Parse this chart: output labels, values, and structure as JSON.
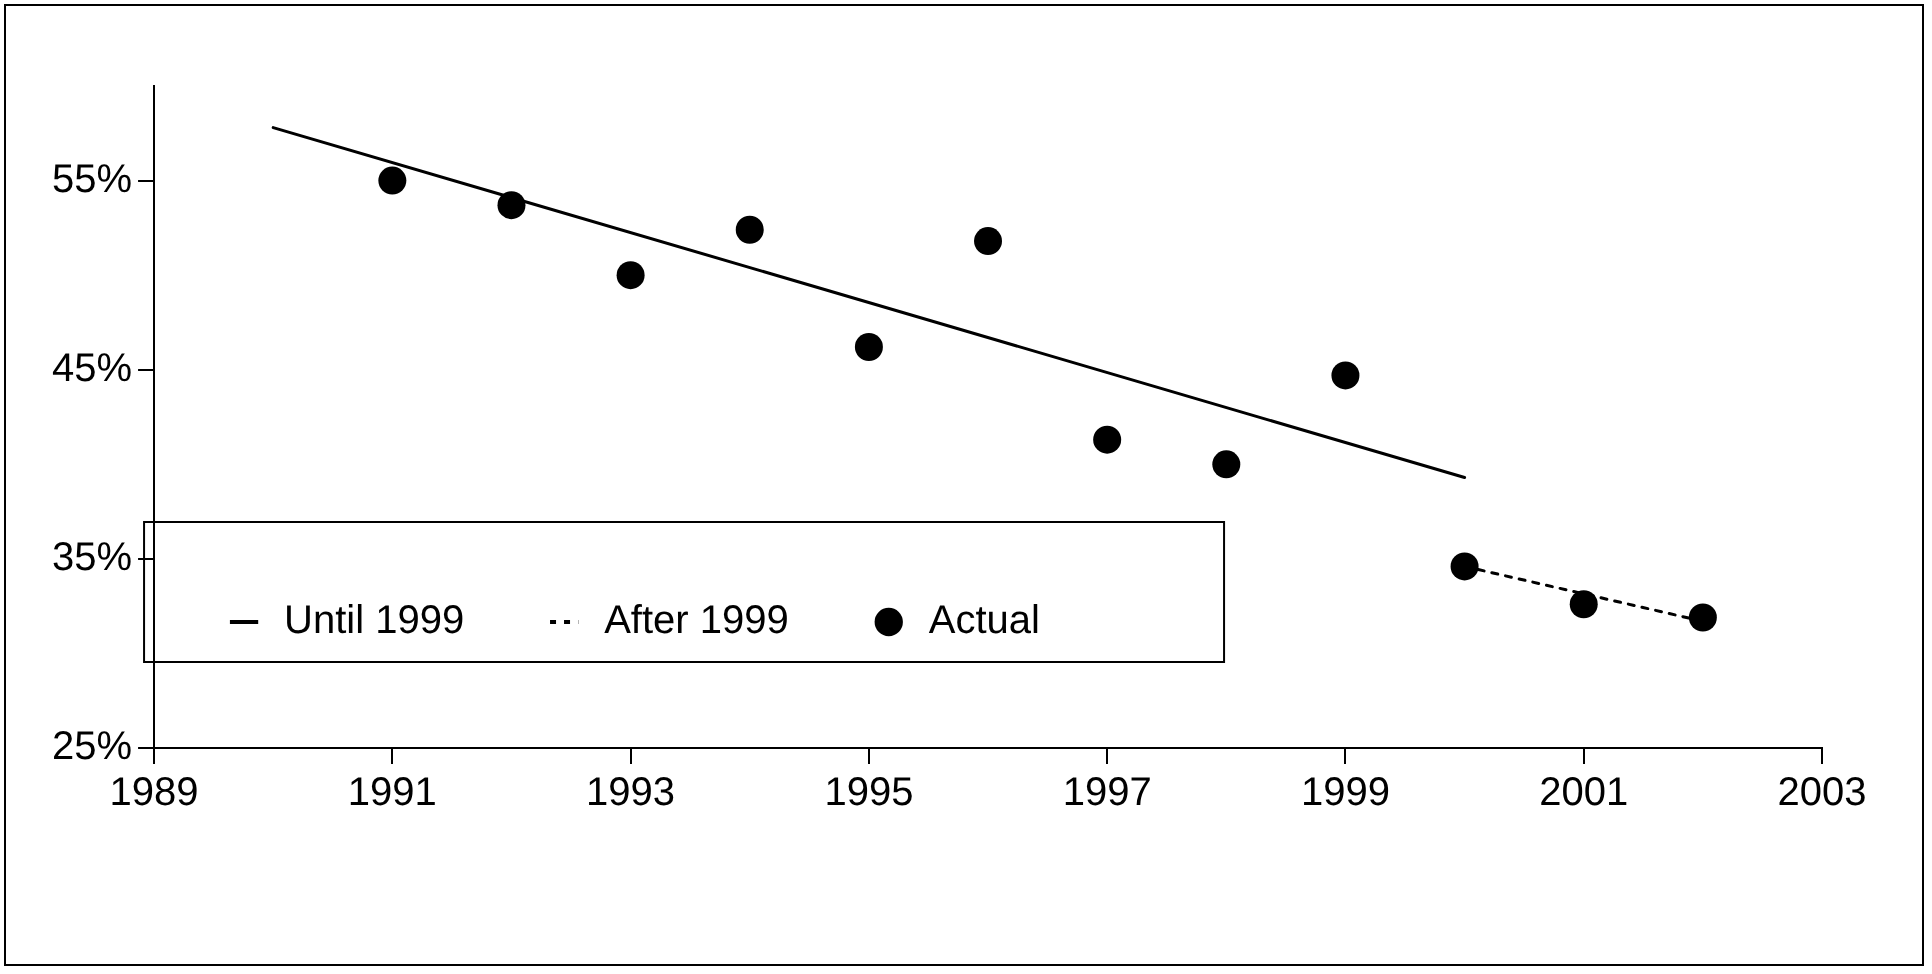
{
  "chart_data": {
    "type": "scatter",
    "xlim": [
      1989,
      2003
    ],
    "xticks": [
      1989,
      1991,
      1993,
      1995,
      1997,
      1999,
      2001,
      2003
    ],
    "ylim": [
      25,
      60
    ],
    "yticks": [
      {
        "value": 25,
        "label": "25%"
      },
      {
        "value": 35,
        "label": "35%"
      },
      {
        "value": 45,
        "label": "45%"
      },
      {
        "value": 55,
        "label": "55%"
      }
    ],
    "grid": false,
    "legend": "bottom left",
    "series": [
      {
        "name": "Until 1999",
        "type": "line",
        "line_style": "solid",
        "marker": "none",
        "color": "#000000",
        "x": [
          1990,
          2000
        ],
        "values": [
          57.8,
          39.3
        ]
      },
      {
        "name": "After 1999",
        "type": "line",
        "line_style": "dotted",
        "marker": "none",
        "color": "#000000",
        "x": [
          2000,
          2002
        ],
        "values": [
          34.6,
          31.7
        ]
      },
      {
        "name": "Actual",
        "type": "scatter",
        "marker": "circle",
        "color": "#000000",
        "x": [
          1991,
          1992,
          1993,
          1994,
          1995,
          1996,
          1997,
          1998,
          1999,
          2000,
          2001,
          2002
        ],
        "values": [
          55.0,
          53.7,
          50.0,
          52.4,
          46.2,
          51.8,
          41.3,
          40.0,
          44.7,
          34.6,
          32.6,
          31.9
        ]
      }
    ]
  }
}
